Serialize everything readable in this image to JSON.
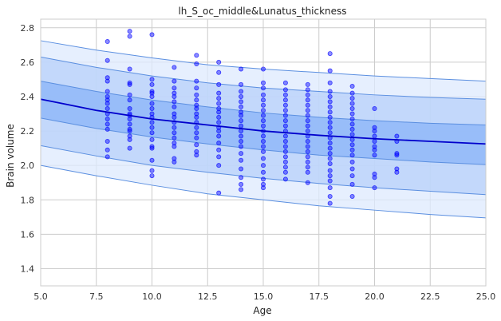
{
  "chart_data": {
    "type": "scatter",
    "title": "lh_S_oc_middle&Lunatus_thickness",
    "xlabel": "Age",
    "ylabel": "Brain volume",
    "xlim": [
      5.0,
      25.0
    ],
    "ylim": [
      1.3,
      2.85
    ],
    "x_ticks": [
      "5.0",
      "7.5",
      "10.0",
      "12.5",
      "15.0",
      "17.5",
      "20.0",
      "22.5",
      "25.0"
    ],
    "y_ticks": [
      "1.4",
      "1.6",
      "1.8",
      "2.0",
      "2.2",
      "2.4",
      "2.6",
      "2.8"
    ],
    "grid": true,
    "colors": {
      "points": "#0000ff",
      "mean_line": "#0000cc",
      "band_inner": "#8ab4f8",
      "band_middle": "#b7d0fa",
      "band_outer": "#dde9fd",
      "band_edge": "#5b8fe0",
      "grid": "#cccccc"
    },
    "mean_curve": {
      "x": [
        5,
        7.5,
        10,
        12.5,
        15,
        17.5,
        20,
        22.5,
        25
      ],
      "y": [
        2.385,
        2.32,
        2.27,
        2.235,
        2.2,
        2.175,
        2.155,
        2.14,
        2.125
      ]
    },
    "bands": [
      {
        "level": "outer",
        "x": [
          5,
          7.5,
          10,
          12.5,
          15,
          17.5,
          20,
          22.5,
          25
        ],
        "upper": [
          2.725,
          2.67,
          2.625,
          2.585,
          2.56,
          2.54,
          2.52,
          2.505,
          2.49
        ],
        "lower": [
          2.0,
          1.94,
          1.885,
          1.835,
          1.8,
          1.765,
          1.74,
          1.715,
          1.695
        ]
      },
      {
        "level": "middle",
        "x": [
          5,
          7.5,
          10,
          12.5,
          15,
          17.5,
          20,
          22.5,
          25
        ],
        "upper": [
          2.63,
          2.57,
          2.52,
          2.48,
          2.45,
          2.43,
          2.41,
          2.395,
          2.385
        ],
        "lower": [
          2.115,
          2.055,
          2.0,
          1.96,
          1.925,
          1.895,
          1.87,
          1.85,
          1.83
        ]
      },
      {
        "level": "inner",
        "x": [
          5,
          7.5,
          10,
          12.5,
          15,
          17.5,
          20,
          22.5,
          25
        ],
        "upper": [
          2.49,
          2.43,
          2.38,
          2.34,
          2.305,
          2.28,
          2.26,
          2.245,
          2.235
        ],
        "lower": [
          2.275,
          2.215,
          2.165,
          2.125,
          2.09,
          2.06,
          2.04,
          2.02,
          2.005
        ]
      }
    ],
    "points": [
      [
        8,
        2.72
      ],
      [
        8,
        2.61
      ],
      [
        8,
        2.51
      ],
      [
        8,
        2.49
      ],
      [
        8,
        2.43
      ],
      [
        8,
        2.4
      ],
      [
        8,
        2.38
      ],
      [
        8,
        2.36
      ],
      [
        8,
        2.33
      ],
      [
        8,
        2.3
      ],
      [
        8,
        2.27
      ],
      [
        8,
        2.24
      ],
      [
        8,
        2.21
      ],
      [
        8,
        2.14
      ],
      [
        8,
        2.09
      ],
      [
        8,
        2.05
      ],
      [
        9,
        2.78
      ],
      [
        9,
        2.75
      ],
      [
        9,
        2.56
      ],
      [
        9,
        2.48
      ],
      [
        9,
        2.47
      ],
      [
        9,
        2.41
      ],
      [
        9,
        2.38
      ],
      [
        9,
        2.33
      ],
      [
        9,
        2.3
      ],
      [
        9,
        2.29
      ],
      [
        9,
        2.27
      ],
      [
        9,
        2.24
      ],
      [
        9,
        2.21
      ],
      [
        9,
        2.2
      ],
      [
        9,
        2.17
      ],
      [
        9,
        2.15
      ],
      [
        9,
        2.1
      ],
      [
        10,
        2.76
      ],
      [
        10,
        2.5
      ],
      [
        10,
        2.47
      ],
      [
        10,
        2.43
      ],
      [
        10,
        2.42
      ],
      [
        10,
        2.4
      ],
      [
        10,
        2.36
      ],
      [
        10,
        2.33
      ],
      [
        10,
        2.3
      ],
      [
        10,
        2.28
      ],
      [
        10,
        2.25
      ],
      [
        10,
        2.22
      ],
      [
        10,
        2.19
      ],
      [
        10,
        2.15
      ],
      [
        10,
        2.11
      ],
      [
        10,
        2.1
      ],
      [
        10,
        2.03
      ],
      [
        10,
        1.97
      ],
      [
        10,
        1.94
      ],
      [
        11,
        2.57
      ],
      [
        11,
        2.49
      ],
      [
        11,
        2.45
      ],
      [
        11,
        2.42
      ],
      [
        11,
        2.4
      ],
      [
        11,
        2.37
      ],
      [
        11,
        2.34
      ],
      [
        11,
        2.3
      ],
      [
        11,
        2.28
      ],
      [
        11,
        2.25
      ],
      [
        11,
        2.22
      ],
      [
        11,
        2.19
      ],
      [
        11,
        2.16
      ],
      [
        11,
        2.13
      ],
      [
        11,
        2.11
      ],
      [
        11,
        2.04
      ],
      [
        11,
        2.02
      ],
      [
        12,
        2.64
      ],
      [
        12,
        2.59
      ],
      [
        12,
        2.49
      ],
      [
        12,
        2.45
      ],
      [
        12,
        2.41
      ],
      [
        12,
        2.38
      ],
      [
        12,
        2.35
      ],
      [
        12,
        2.33
      ],
      [
        12,
        2.3
      ],
      [
        12,
        2.28
      ],
      [
        12,
        2.25
      ],
      [
        12,
        2.22
      ],
      [
        12,
        2.19
      ],
      [
        12,
        2.16
      ],
      [
        12,
        2.12
      ],
      [
        12,
        2.08
      ],
      [
        12,
        2.06
      ],
      [
        13,
        2.6
      ],
      [
        13,
        2.54
      ],
      [
        13,
        2.47
      ],
      [
        13,
        2.42
      ],
      [
        13,
        2.39
      ],
      [
        13,
        2.36
      ],
      [
        13,
        2.33
      ],
      [
        13,
        2.31
      ],
      [
        13,
        2.28
      ],
      [
        13,
        2.25
      ],
      [
        13,
        2.22
      ],
      [
        13,
        2.2
      ],
      [
        13,
        2.17
      ],
      [
        13,
        2.13
      ],
      [
        13,
        2.09
      ],
      [
        13,
        2.05
      ],
      [
        13,
        2.0
      ],
      [
        13,
        1.84
      ],
      [
        14,
        2.56
      ],
      [
        14,
        2.47
      ],
      [
        14,
        2.43
      ],
      [
        14,
        2.4
      ],
      [
        14,
        2.37
      ],
      [
        14,
        2.34
      ],
      [
        14,
        2.31
      ],
      [
        14,
        2.29
      ],
      [
        14,
        2.26
      ],
      [
        14,
        2.23
      ],
      [
        14,
        2.2
      ],
      [
        14,
        2.17
      ],
      [
        14,
        2.14
      ],
      [
        14,
        2.11
      ],
      [
        14,
        2.07
      ],
      [
        14,
        2.03
      ],
      [
        14,
        1.98
      ],
      [
        14,
        1.93
      ],
      [
        14,
        1.89
      ],
      [
        14,
        1.86
      ],
      [
        15,
        2.56
      ],
      [
        15,
        2.48
      ],
      [
        15,
        2.45
      ],
      [
        15,
        2.41
      ],
      [
        15,
        2.38
      ],
      [
        15,
        2.35
      ],
      [
        15,
        2.32
      ],
      [
        15,
        2.29
      ],
      [
        15,
        2.26
      ],
      [
        15,
        2.23
      ],
      [
        15,
        2.2
      ],
      [
        15,
        2.17
      ],
      [
        15,
        2.14
      ],
      [
        15,
        2.11
      ],
      [
        15,
        2.08
      ],
      [
        15,
        2.04
      ],
      [
        15,
        2.0
      ],
      [
        15,
        1.96
      ],
      [
        15,
        1.92
      ],
      [
        15,
        1.89
      ],
      [
        15,
        1.87
      ],
      [
        16,
        2.48
      ],
      [
        16,
        2.44
      ],
      [
        16,
        2.41
      ],
      [
        16,
        2.38
      ],
      [
        16,
        2.35
      ],
      [
        16,
        2.32
      ],
      [
        16,
        2.29
      ],
      [
        16,
        2.26
      ],
      [
        16,
        2.23
      ],
      [
        16,
        2.2
      ],
      [
        16,
        2.17
      ],
      [
        16,
        2.14
      ],
      [
        16,
        2.11
      ],
      [
        16,
        2.08
      ],
      [
        16,
        2.05
      ],
      [
        16,
        2.02
      ],
      [
        16,
        1.99
      ],
      [
        16,
        1.96
      ],
      [
        16,
        1.92
      ],
      [
        17,
        2.47
      ],
      [
        17,
        2.44
      ],
      [
        17,
        2.41
      ],
      [
        17,
        2.38
      ],
      [
        17,
        2.35
      ],
      [
        17,
        2.32
      ],
      [
        17,
        2.29
      ],
      [
        17,
        2.26
      ],
      [
        17,
        2.23
      ],
      [
        17,
        2.2
      ],
      [
        17,
        2.17
      ],
      [
        17,
        2.14
      ],
      [
        17,
        2.11
      ],
      [
        17,
        2.08
      ],
      [
        17,
        2.05
      ],
      [
        17,
        2.02
      ],
      [
        17,
        1.99
      ],
      [
        17,
        1.96
      ],
      [
        17,
        1.9
      ],
      [
        18,
        2.65
      ],
      [
        18,
        2.55
      ],
      [
        18,
        2.48
      ],
      [
        18,
        2.43
      ],
      [
        18,
        2.4
      ],
      [
        18,
        2.37
      ],
      [
        18,
        2.34
      ],
      [
        18,
        2.31
      ],
      [
        18,
        2.28
      ],
      [
        18,
        2.25
      ],
      [
        18,
        2.22
      ],
      [
        18,
        2.19
      ],
      [
        18,
        2.16
      ],
      [
        18,
        2.13
      ],
      [
        18,
        2.1
      ],
      [
        18,
        2.07
      ],
      [
        18,
        2.04
      ],
      [
        18,
        2.01
      ],
      [
        18,
        1.97
      ],
      [
        18,
        1.94
      ],
      [
        18,
        1.91
      ],
      [
        18,
        1.87
      ],
      [
        18,
        1.82
      ],
      [
        18,
        1.78
      ],
      [
        19,
        2.46
      ],
      [
        19,
        2.42
      ],
      [
        19,
        2.39
      ],
      [
        19,
        2.36
      ],
      [
        19,
        2.33
      ],
      [
        19,
        2.3
      ],
      [
        19,
        2.27
      ],
      [
        19,
        2.24
      ],
      [
        19,
        2.21
      ],
      [
        19,
        2.18
      ],
      [
        19,
        2.15
      ],
      [
        19,
        2.12
      ],
      [
        19,
        2.09
      ],
      [
        19,
        2.06
      ],
      [
        19,
        2.02
      ],
      [
        19,
        1.98
      ],
      [
        19,
        1.94
      ],
      [
        19,
        1.89
      ],
      [
        19,
        1.82
      ],
      [
        20,
        2.33
      ],
      [
        20,
        2.22
      ],
      [
        20,
        2.2
      ],
      [
        20,
        2.17
      ],
      [
        20,
        2.14
      ],
      [
        20,
        2.11
      ],
      [
        20,
        2.09
      ],
      [
        20,
        2.06
      ],
      [
        20,
        1.95
      ],
      [
        20,
        1.93
      ],
      [
        20,
        1.87
      ],
      [
        21,
        2.17
      ],
      [
        21,
        2.14
      ],
      [
        21,
        2.07
      ],
      [
        21,
        2.06
      ],
      [
        21,
        1.98
      ],
      [
        21,
        1.96
      ]
    ]
  }
}
